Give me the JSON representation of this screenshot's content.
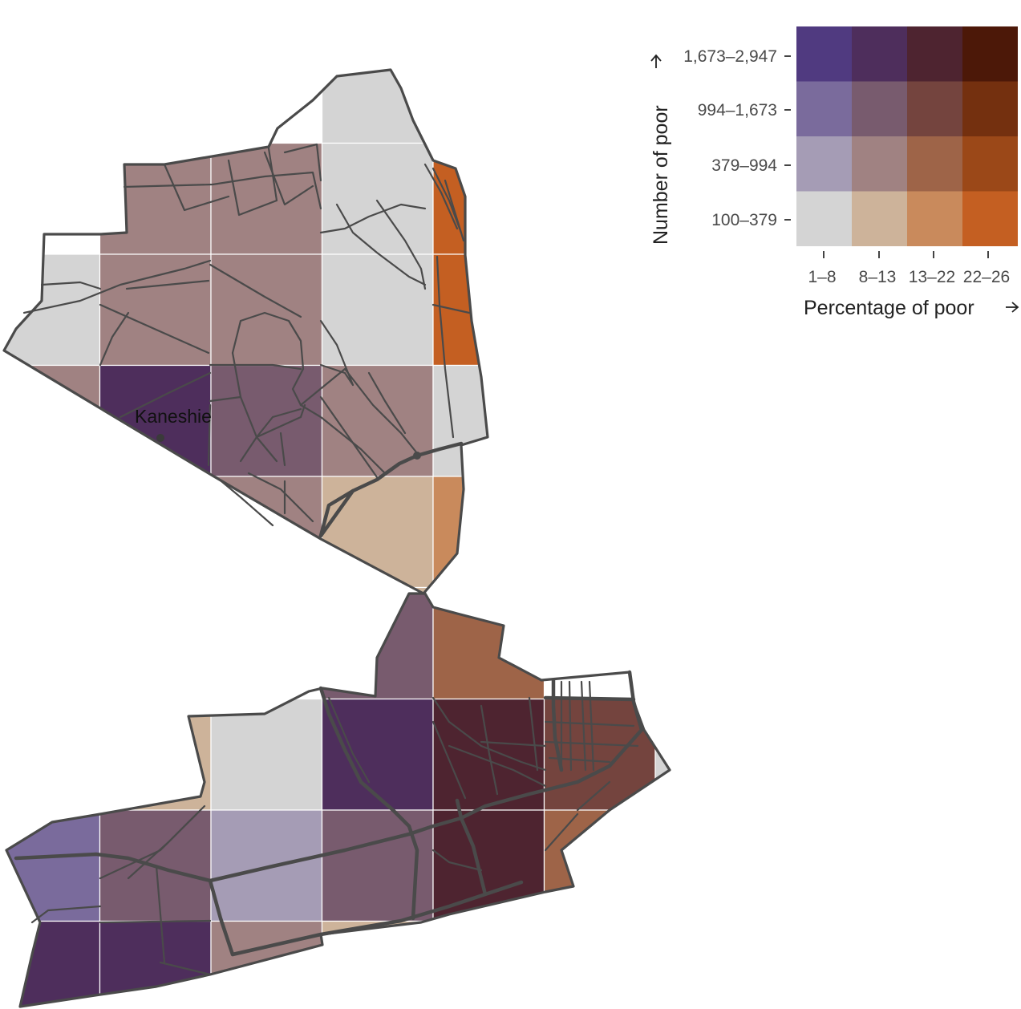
{
  "map": {
    "place_label": "Kaneshie",
    "colors": {
      "p1": [
        "#d4d4d4",
        "#a59cb5",
        "#7a6b9c",
        "#503a80"
      ],
      "p2": [
        "#cdb39a",
        "#a08282",
        "#785b6e",
        "#4e2e5c"
      ],
      "p3": [
        "#c98a5c",
        "#9e6448",
        "#74443e",
        "#4e2430"
      ],
      "p4": [
        "#c45f22",
        "#9b4818",
        "#74300f",
        "#4c1808"
      ]
    },
    "cells_north": [
      {
        "row": 0,
        "col": 3,
        "p": 0,
        "n": 0
      },
      {
        "row": 1,
        "col": 1,
        "p": 1,
        "n": 1
      },
      {
        "row": 1,
        "col": 2,
        "p": 1,
        "n": 1
      },
      {
        "row": 1,
        "col": 3,
        "p": 0,
        "n": 0
      },
      {
        "row": 1,
        "col": 4,
        "p": 3,
        "n": 0
      },
      {
        "row": 2,
        "col": 0,
        "p": 0,
        "n": 0
      },
      {
        "row": 2,
        "col": 1,
        "p": 1,
        "n": 1
      },
      {
        "row": 2,
        "col": 2,
        "p": 1,
        "n": 1
      },
      {
        "row": 2,
        "col": 3,
        "p": 0,
        "n": 0
      },
      {
        "row": 2,
        "col": 4,
        "p": 3,
        "n": 0
      },
      {
        "row": 3,
        "col": 0,
        "p": 1,
        "n": 1
      },
      {
        "row": 3,
        "col": 1,
        "p": 1,
        "n": 3
      },
      {
        "row": 3,
        "col": 2,
        "p": 1,
        "n": 2
      },
      {
        "row": 3,
        "col": 3,
        "p": 1,
        "n": 1
      },
      {
        "row": 3,
        "col": 4,
        "p": 0,
        "n": 0
      },
      {
        "row": 4,
        "col": 0,
        "p": 0,
        "n": 0
      },
      {
        "row": 4,
        "col": 1,
        "p": 1,
        "n": 1
      },
      {
        "row": 4,
        "col": 2,
        "p": 1,
        "n": 1
      },
      {
        "row": 4,
        "col": 3,
        "p": 1,
        "n": 0
      },
      {
        "row": 4,
        "col": 4,
        "p": 2,
        "n": 0
      },
      {
        "row": 5,
        "col": 1,
        "p": 1,
        "n": 1
      },
      {
        "row": 5,
        "col": 2,
        "p": 1,
        "n": 1
      },
      {
        "row": 5,
        "col": 3,
        "p": 1,
        "n": 0
      },
      {
        "row": 5,
        "col": 4,
        "p": 2,
        "n": 0
      },
      {
        "row": 6,
        "col": 2,
        "p": 2,
        "n": 0
      },
      {
        "row": 6,
        "col": 3,
        "p": 3,
        "n": 0
      },
      {
        "row": 6,
        "col": 4,
        "p": 3,
        "n": 0
      }
    ],
    "cells_south": [
      {
        "row": 0,
        "col": 3,
        "p": 1,
        "n": 2
      },
      {
        "row": 0,
        "col": 4,
        "p": 2,
        "n": 1
      },
      {
        "row": 1,
        "col": 1,
        "p": 1,
        "n": 0
      },
      {
        "row": 1,
        "col": 2,
        "p": 0,
        "n": 0
      },
      {
        "row": 1,
        "col": 3,
        "p": 1,
        "n": 3
      },
      {
        "row": 1,
        "col": 4,
        "p": 2,
        "n": 3
      },
      {
        "row": 1,
        "col": 5,
        "p": 2,
        "n": 2
      },
      {
        "row": 1,
        "col": 6,
        "p": 0,
        "n": 0
      },
      {
        "row": 2,
        "col": 0,
        "p": 0,
        "n": 2
      },
      {
        "row": 2,
        "col": 1,
        "p": 1,
        "n": 2
      },
      {
        "row": 2,
        "col": 2,
        "p": 0,
        "n": 1
      },
      {
        "row": 2,
        "col": 3,
        "p": 1,
        "n": 2
      },
      {
        "row": 2,
        "col": 4,
        "p": 2,
        "n": 3
      },
      {
        "row": 2,
        "col": 5,
        "p": 2,
        "n": 1
      },
      {
        "row": 3,
        "col": 0,
        "p": 1,
        "n": 3
      },
      {
        "row": 3,
        "col": 1,
        "p": 1,
        "n": 3
      },
      {
        "row": 3,
        "col": 2,
        "p": 1,
        "n": 1
      },
      {
        "row": 3,
        "col": 3,
        "p": 1,
        "n": 0
      }
    ]
  },
  "legend": {
    "y_title": "Number of poor",
    "x_title": "Percentage of poor",
    "y_ticks": [
      "1,673–2,947",
      "994–1,673",
      "379–994",
      "100–379"
    ],
    "x_ticks": [
      "1–8",
      "8–13",
      "13–22",
      "22–26"
    ]
  }
}
